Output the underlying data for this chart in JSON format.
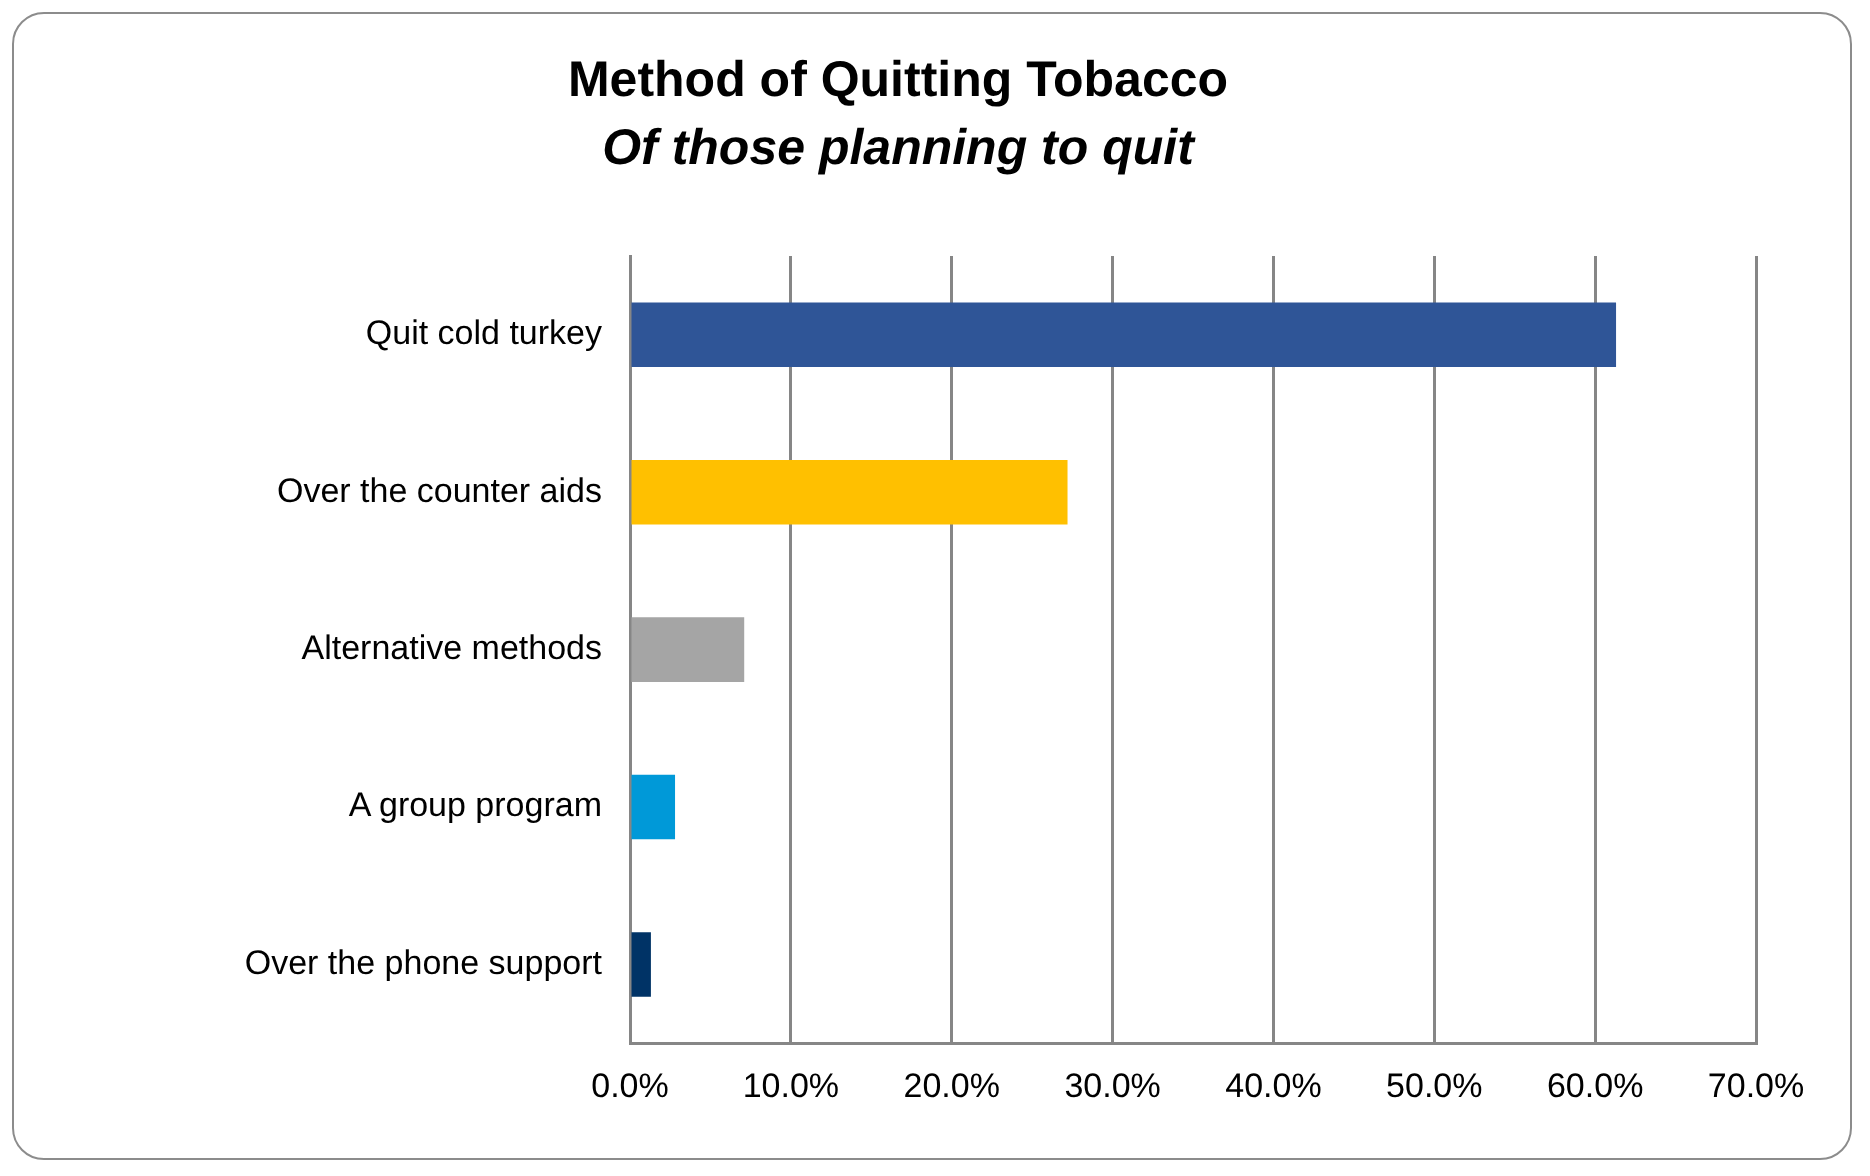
{
  "chart_data": {
    "type": "bar",
    "orientation": "horizontal",
    "title": "Method of Quitting Tobacco",
    "subtitle": "Of those planning to quit",
    "categories": [
      "Quit cold turkey",
      "Over the counter aids",
      "Alternative methods",
      "A group program",
      "Over the phone support"
    ],
    "values": [
      61.3,
      27.2,
      7.1,
      2.8,
      1.3
    ],
    "colors": [
      "#2f5597",
      "#ffc000",
      "#a5a5a5",
      "#0099d8",
      "#003366"
    ],
    "xlim": [
      0,
      70
    ],
    "xticks": [
      {
        "value": 0,
        "label": "0.0%"
      },
      {
        "value": 10,
        "label": "10.0%"
      },
      {
        "value": 20,
        "label": "20.0%"
      },
      {
        "value": 30,
        "label": "30.0%"
      },
      {
        "value": 40,
        "label": "40.0%"
      },
      {
        "value": 50,
        "label": "50.0%"
      },
      {
        "value": 60,
        "label": "60.0%"
      },
      {
        "value": 70,
        "label": "70.0%"
      }
    ],
    "grid": "x",
    "legend": false
  }
}
